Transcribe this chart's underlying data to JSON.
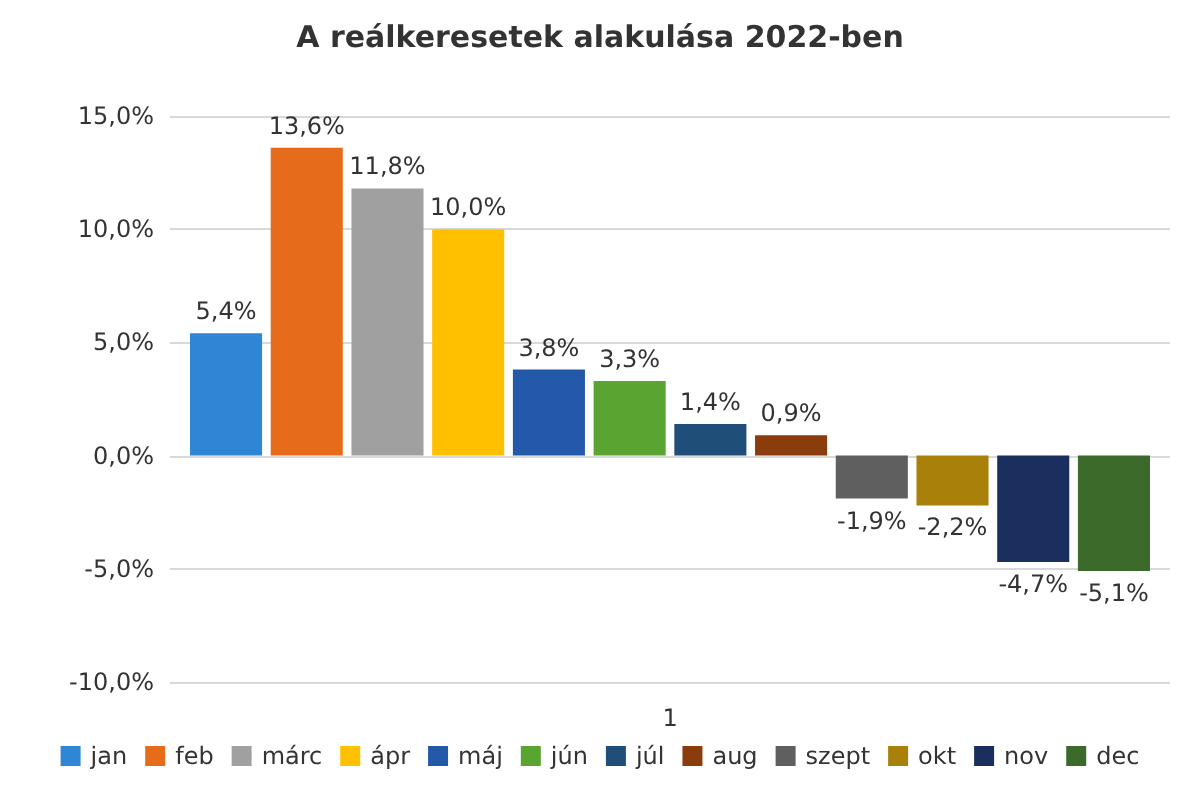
{
  "chart_data": {
    "type": "bar",
    "title": "A reálkeresetek alakulása 2022-ben",
    "categories": [
      "1"
    ],
    "series": [
      {
        "name": "jan",
        "color": "#2e86d4",
        "values": [
          5.4
        ],
        "value_labels": [
          "5,4%"
        ]
      },
      {
        "name": "feb",
        "color": "#e46c1b",
        "values": [
          13.6
        ],
        "value_labels": [
          "13,6%"
        ]
      },
      {
        "name": "márc",
        "color": "#a0a0a0",
        "values": [
          11.8
        ],
        "value_labels": [
          "11,8%"
        ]
      },
      {
        "name": "ápr",
        "color": "#ffc000",
        "values": [
          10.0
        ],
        "value_labels": [
          "10,0%"
        ]
      },
      {
        "name": "máj",
        "color": "#2458a8",
        "values": [
          3.8
        ],
        "value_labels": [
          "3,8%"
        ]
      },
      {
        "name": "jún",
        "color": "#5aa532",
        "values": [
          3.3
        ],
        "value_labels": [
          "3,3%"
        ]
      },
      {
        "name": "júl",
        "color": "#1f4e79",
        "values": [
          1.4
        ],
        "value_labels": [
          "1,4%"
        ]
      },
      {
        "name": "aug",
        "color": "#8b3c0c",
        "values": [
          0.9
        ],
        "value_labels": [
          "0,9%"
        ]
      },
      {
        "name": "szept",
        "color": "#5f5f5f",
        "values": [
          -1.9
        ],
        "value_labels": [
          "-1,9%"
        ]
      },
      {
        "name": "okt",
        "color": "#a8800a",
        "values": [
          -2.2
        ],
        "value_labels": [
          "-2,2%"
        ]
      },
      {
        "name": "nov",
        "color": "#1a2f5e",
        "values": [
          -4.7
        ],
        "value_labels": [
          "-4,7%"
        ]
      },
      {
        "name": "dec",
        "color": "#3b6a2a",
        "values": [
          -5.1
        ],
        "value_labels": [
          "-5,1%"
        ]
      }
    ],
    "ylim": [
      -10,
      15
    ],
    "yticks": [
      {
        "value": -10,
        "label": "-10,0%"
      },
      {
        "value": -5,
        "label": "-5,0%"
      },
      {
        "value": 0,
        "label": "0,0%"
      },
      {
        "value": 5,
        "label": "5,0%"
      },
      {
        "value": 10,
        "label": "10,0%"
      },
      {
        "value": 15,
        "label": "15,0%"
      }
    ],
    "grid": "y",
    "legend": "bottom"
  }
}
